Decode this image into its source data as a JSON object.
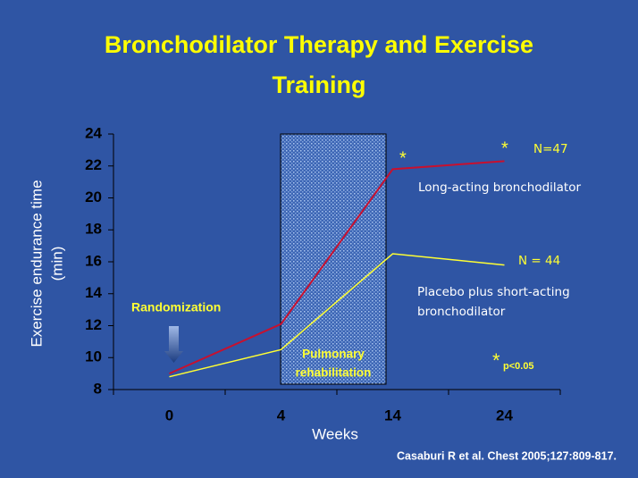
{
  "chart_data": {
    "type": "line",
    "title": [
      "Bronchodilator Therapy and Exercise",
      "Training"
    ],
    "xlabel": "Weeks",
    "ylabel": [
      "Exercise endurance time",
      "(min)"
    ],
    "categories": [
      "0",
      "4",
      "14",
      "24"
    ],
    "series": [
      {
        "name": "Long-acting bronchodilator",
        "color": "#c8102e",
        "values": [
          9.0,
          12.1,
          21.8,
          22.3
        ]
      },
      {
        "name": "Placebo plus short-acting bronchodilator",
        "color": "#ffff33",
        "values": [
          8.8,
          10.5,
          16.5,
          15.8
        ]
      }
    ],
    "ylim": [
      8,
      24
    ],
    "yticks": [
      8,
      10,
      12,
      14,
      16,
      18,
      20,
      22,
      24
    ],
    "annotations": {
      "randomization": "Randomization",
      "rehab": [
        "Pulmonary",
        "rehabilitation"
      ],
      "n_long": "N=47",
      "n_placebo": "N = 44",
      "placebo_lines": [
        "Placebo plus short-acting",
        "bronchodilator"
      ],
      "star": "*",
      "pvalue": "p<0.05"
    },
    "citation": "Casaburi R et al. Chest 2005;127:809-817."
  }
}
